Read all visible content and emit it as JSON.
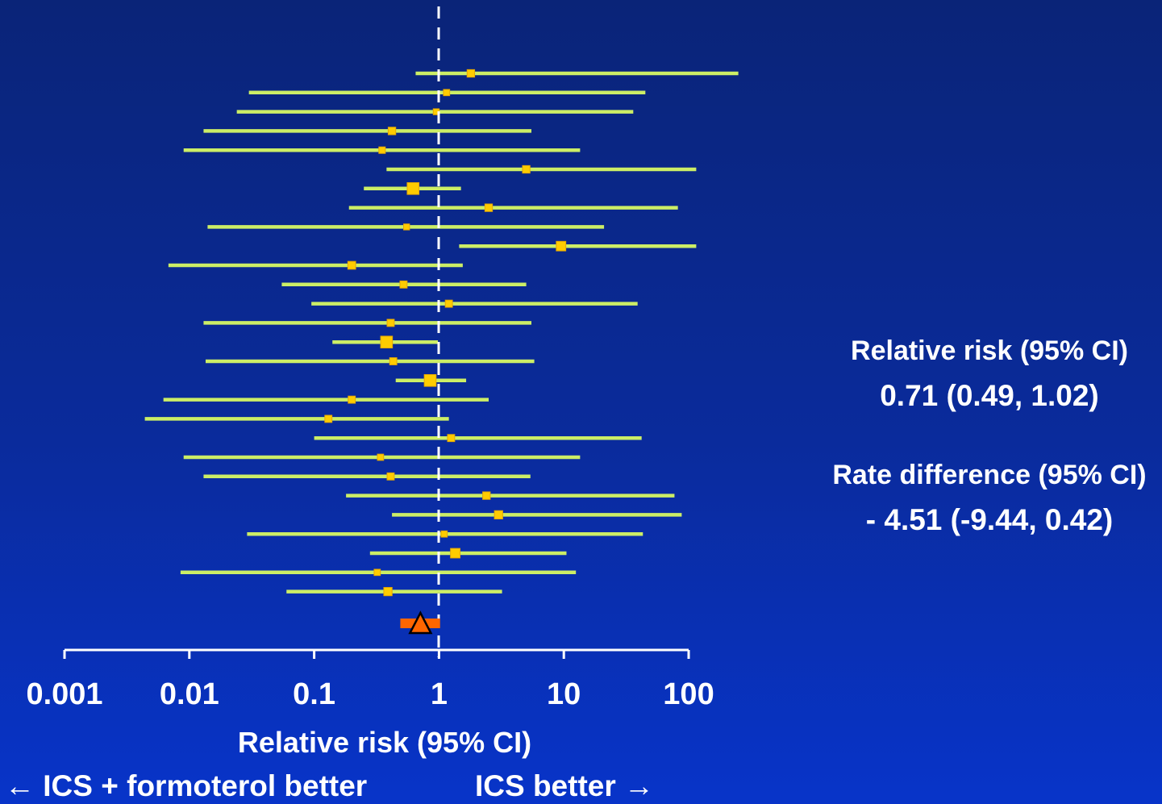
{
  "chart_data": {
    "type": "forest",
    "x_scale": "log",
    "xlim": [
      0.001,
      100
    ],
    "ticks": [
      0.001,
      0.01,
      0.1,
      1,
      10,
      100
    ],
    "tick_labels": [
      "0.001",
      "0.01",
      "0.1",
      "1",
      "10",
      "100"
    ],
    "reference_line": 1,
    "xlabel": "Relative risk (95% CI)",
    "direction_left": "← ICS + formoterol better",
    "direction_right": "ICS better →",
    "studies": [
      {
        "rr": 1.8,
        "lo": 0.65,
        "hi": 250,
        "weight": 1
      },
      {
        "rr": 1.15,
        "lo": 0.03,
        "hi": 45,
        "weight": 0.4
      },
      {
        "rr": 0.95,
        "lo": 0.024,
        "hi": 36,
        "weight": 0.3
      },
      {
        "rr": 0.42,
        "lo": 0.013,
        "hi": 5.5,
        "weight": 1
      },
      {
        "rr": 0.35,
        "lo": 0.009,
        "hi": 13.5,
        "weight": 0.5
      },
      {
        "rr": 5.0,
        "lo": 0.38,
        "hi": 115,
        "weight": 1
      },
      {
        "rr": 0.62,
        "lo": 0.25,
        "hi": 1.5,
        "weight": 5
      },
      {
        "rr": 2.5,
        "lo": 0.19,
        "hi": 82,
        "weight": 1
      },
      {
        "rr": 0.55,
        "lo": 0.014,
        "hi": 21,
        "weight": 0.3
      },
      {
        "rr": 9.5,
        "lo": 1.45,
        "hi": 115,
        "weight": 2.5
      },
      {
        "rr": 0.2,
        "lo": 0.0068,
        "hi": 1.55,
        "weight": 1.2
      },
      {
        "rr": 0.52,
        "lo": 0.055,
        "hi": 5.0,
        "weight": 0.8
      },
      {
        "rr": 1.2,
        "lo": 0.095,
        "hi": 39,
        "weight": 0.8
      },
      {
        "rr": 0.41,
        "lo": 0.013,
        "hi": 5.5,
        "weight": 0.8
      },
      {
        "rr": 0.38,
        "lo": 0.14,
        "hi": 0.98,
        "weight": 5
      },
      {
        "rr": 0.43,
        "lo": 0.0135,
        "hi": 5.8,
        "weight": 0.8
      },
      {
        "rr": 0.85,
        "lo": 0.45,
        "hi": 1.65,
        "weight": 5
      },
      {
        "rr": 0.2,
        "lo": 0.0062,
        "hi": 2.5,
        "weight": 0.8
      },
      {
        "rr": 0.13,
        "lo": 0.0044,
        "hi": 1.2,
        "weight": 0.8
      },
      {
        "rr": 1.25,
        "lo": 0.1,
        "hi": 42,
        "weight": 0.8
      },
      {
        "rr": 0.34,
        "lo": 0.009,
        "hi": 13.5,
        "weight": 0.4
      },
      {
        "rr": 0.41,
        "lo": 0.013,
        "hi": 5.4,
        "weight": 0.8
      },
      {
        "rr": 2.4,
        "lo": 0.18,
        "hi": 77,
        "weight": 1
      },
      {
        "rr": 3.0,
        "lo": 0.42,
        "hi": 88,
        "weight": 1.5
      },
      {
        "rr": 1.1,
        "lo": 0.029,
        "hi": 43,
        "weight": 0.4
      },
      {
        "rr": 1.35,
        "lo": 0.28,
        "hi": 10.5,
        "weight": 2.5
      },
      {
        "rr": 0.32,
        "lo": 0.0085,
        "hi": 12.5,
        "weight": 0.4
      },
      {
        "rr": 0.39,
        "lo": 0.06,
        "hi": 3.2,
        "weight": 1.5
      }
    ],
    "pooled": {
      "rr": 0.71,
      "lo": 0.49,
      "hi": 1.02
    },
    "colors": {
      "ci_line": "#ccee66",
      "marker": "#ffcc00",
      "marker_edge": "#e8a800",
      "pooled_bar": "#ff6600",
      "pooled_marker": "#ff6600",
      "axis": "#ffffff"
    }
  },
  "summary": {
    "rr_title": "Relative risk (95% CI)",
    "rr_value": "0.71 (0.49, 1.02)",
    "rd_title": "Rate difference (95% CI)",
    "rd_value": "- 4.51 (-9.44, 0.42)"
  }
}
